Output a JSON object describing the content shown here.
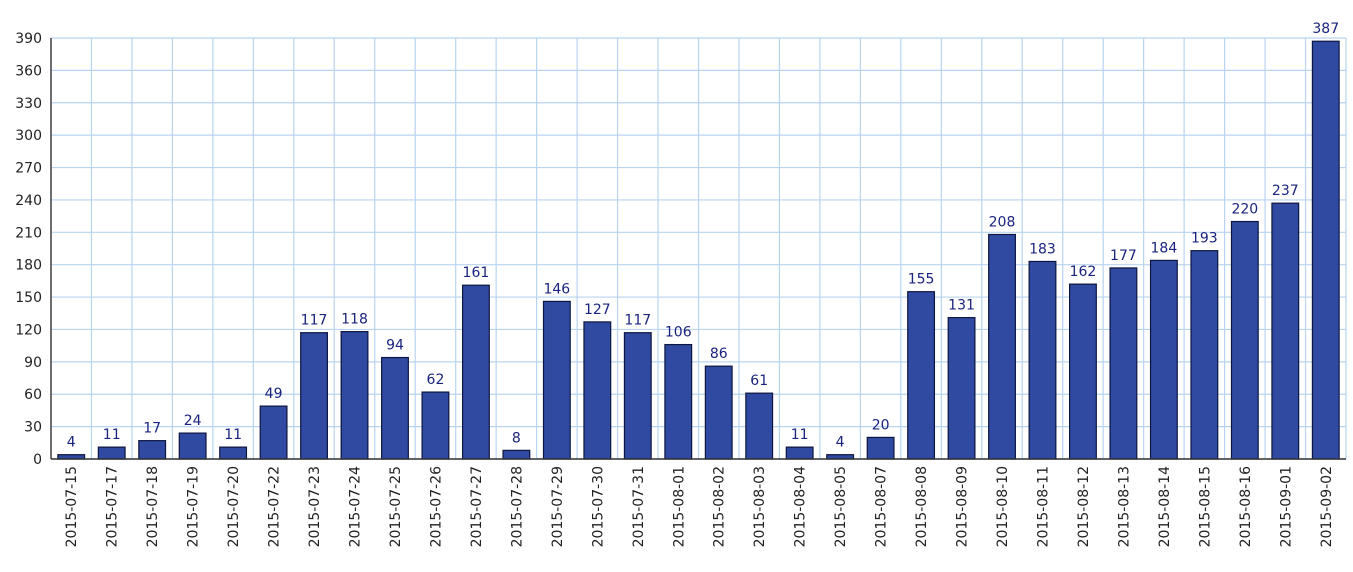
{
  "chart_data": {
    "type": "bar",
    "title": "",
    "xlabel": "",
    "ylabel": "",
    "ylim": [
      0,
      390
    ],
    "ytick_step": 30,
    "grid": true,
    "legend": "none",
    "colors": {
      "bar": "#2f4aa0",
      "bar_edge": "#0d1640",
      "grid": "#b8d4f0",
      "label": "#1a237e"
    },
    "categories": [
      "2015-07-15",
      "2015-07-17",
      "2015-07-18",
      "2015-07-19",
      "2015-07-20",
      "2015-07-22",
      "2015-07-23",
      "2015-07-24",
      "2015-07-25",
      "2015-07-26",
      "2015-07-27",
      "2015-07-28",
      "2015-07-29",
      "2015-07-30",
      "2015-07-31",
      "2015-08-01",
      "2015-08-02",
      "2015-08-03",
      "2015-08-04",
      "2015-08-05",
      "2015-08-07",
      "2015-08-08",
      "2015-08-09",
      "2015-08-10",
      "2015-08-11",
      "2015-08-12",
      "2015-08-13",
      "2015-08-14",
      "2015-08-15",
      "2015-08-16",
      "2015-09-01",
      "2015-09-02"
    ],
    "values": [
      4,
      11,
      17,
      24,
      11,
      49,
      117,
      118,
      94,
      62,
      161,
      8,
      146,
      127,
      117,
      106,
      86,
      61,
      11,
      4,
      20,
      155,
      131,
      208,
      183,
      162,
      177,
      184,
      193,
      220,
      237,
      387
    ],
    "labels": [
      "4",
      "11",
      "17",
      "24",
      "11",
      "49",
      "117",
      "118",
      "94",
      "62",
      "161",
      "8",
      "146",
      "127",
      "117",
      "106",
      "86",
      "61",
      "11",
      "4",
      "20",
      "155",
      "131",
      "208",
      "183",
      "162",
      "177",
      "184",
      "193",
      "220",
      "237",
      "387"
    ]
  }
}
